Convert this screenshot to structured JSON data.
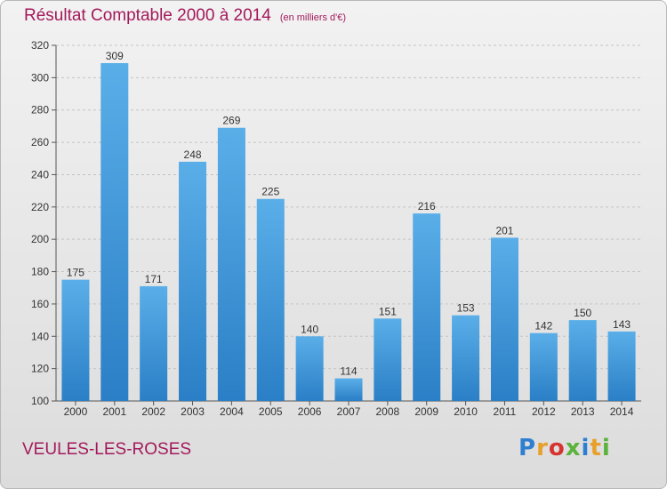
{
  "header": {
    "title": "Résultat Comptable 2000 à 2014",
    "subtitle": "(en milliers d'€)"
  },
  "location": "VEULES-LES-ROSES",
  "brand": {
    "text": "Proxiti",
    "colors": [
      "#2f7fd1",
      "#e8a02a",
      "#d6342f",
      "#5bb33c",
      "#2f7fd1",
      "#e8a02a",
      "#5bb33c"
    ]
  },
  "colors": {
    "accent": "#a3195b",
    "bar_light": "#5aaee8",
    "bar_dark": "#2a7fc6"
  },
  "chart_data": {
    "type": "bar",
    "title": "Résultat Comptable 2000 à 2014",
    "categories": [
      "2000",
      "2001",
      "2002",
      "2003",
      "2004",
      "2005",
      "2006",
      "2007",
      "2008",
      "2009",
      "2010",
      "2011",
      "2012",
      "2013",
      "2014"
    ],
    "values": [
      175,
      309,
      171,
      248,
      269,
      225,
      140,
      114,
      151,
      216,
      153,
      201,
      142,
      150,
      143
    ],
    "ylim": [
      100,
      320
    ],
    "yticks": [
      100,
      120,
      140,
      160,
      180,
      200,
      220,
      240,
      260,
      280,
      300,
      320
    ],
    "grid": true,
    "xlabel": "",
    "ylabel": ""
  }
}
